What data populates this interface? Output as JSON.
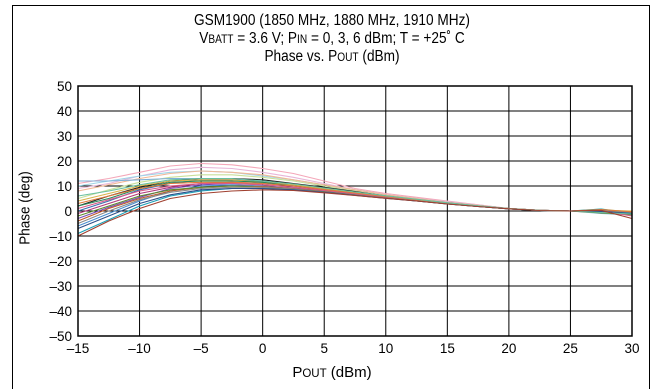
{
  "chart_data": {
    "type": "line",
    "title_lines": [
      {
        "parts": [
          {
            "t": "GSM1900 (1850 MHz, 1880 MHz, 1910 MHz)",
            "sc": false
          }
        ]
      },
      {
        "parts": [
          {
            "t": "V",
            "sc": false
          },
          {
            "t": "BATT",
            "sc": true
          },
          {
            "t": " = 3.6 V; P",
            "sc": false
          },
          {
            "t": "IN",
            "sc": true
          },
          {
            "t": " = 0, 3, 6 dBm; T = +25˚ C",
            "sc": false
          }
        ]
      },
      {
        "parts": [
          {
            "t": "Phase vs. P",
            "sc": false
          },
          {
            "t": "OUT",
            "sc": true
          },
          {
            "t": " (dBm)",
            "sc": false
          }
        ]
      }
    ],
    "title": "GSM1900 (1850 MHz, 1880 MHz, 1910 MHz) VBATT = 3.6 V; PIN = 0, 3, 6 dBm; T = +25˚ C Phase vs. POUT (dBm)",
    "xlabel_parts": [
      {
        "t": "P",
        "sc": false
      },
      {
        "t": "OUT",
        "sc": true
      },
      {
        "t": " (dBm)",
        "sc": false
      }
    ],
    "xlabel": "POUT (dBm)",
    "ylabel": "Phase (deg)",
    "xlim": [
      -15,
      30
    ],
    "ylim": [
      -50,
      50
    ],
    "xticks": [
      -15,
      -10,
      -5,
      0,
      5,
      10,
      15,
      20,
      25,
      30
    ],
    "xtick_labels": [
      "–15",
      "–10",
      "–5",
      "0",
      "5",
      "10",
      "15",
      "20",
      "25",
      "30"
    ],
    "yticks": [
      50,
      40,
      30,
      20,
      10,
      0,
      -10,
      -20,
      -30,
      -40,
      -50
    ],
    "ytick_labels": [
      "50",
      "40",
      "30",
      "20",
      "10",
      "0",
      "–10",
      "–20",
      "–30",
      "–40",
      "–50"
    ],
    "grid": true,
    "legend": "none",
    "x": [
      -15,
      -12.5,
      -10,
      -7.5,
      -5,
      -2.5,
      0,
      2.5,
      5,
      7.5,
      10,
      12.5,
      15,
      17.5,
      20,
      22.5,
      25,
      27.5,
      30
    ],
    "series": [
      {
        "color": "#f4a7b9",
        "values": [
          11,
          13,
          15.5,
          18,
          19,
          18.5,
          17,
          15,
          12,
          9,
          7,
          5.5,
          4,
          2.5,
          1,
          0.3,
          0,
          -0.5,
          -1
        ]
      },
      {
        "color": "#e8b5d8",
        "values": [
          9,
          11,
          14,
          16.5,
          17.5,
          17,
          15.5,
          13.5,
          11,
          8.5,
          6.5,
          5,
          3.8,
          2.5,
          1,
          0.3,
          0,
          0,
          -0.5
        ]
      },
      {
        "color": "#9fd4e8",
        "values": [
          10,
          12,
          14,
          15.5,
          16,
          15.5,
          14,
          12.5,
          10.5,
          8.5,
          6.5,
          5,
          3.5,
          2.2,
          1,
          0.3,
          0,
          0.3,
          -0.8
        ]
      },
      {
        "color": "#f0b896",
        "values": [
          8,
          10.5,
          13,
          15,
          16,
          15.5,
          14.5,
          12.5,
          10.5,
          8.5,
          6.5,
          5,
          3.5,
          2.3,
          1,
          0.3,
          0,
          -0.3,
          -1
        ]
      },
      {
        "color": "#c8e09a",
        "values": [
          5,
          8.5,
          11.5,
          13.5,
          14.5,
          14.5,
          13.5,
          12,
          10,
          8,
          6,
          4.5,
          3.2,
          2,
          1,
          0.3,
          0,
          0.8,
          -0.5
        ]
      },
      {
        "color": "#7fb0d8",
        "values": [
          12,
          12,
          12.5,
          13,
          13,
          12.5,
          11.5,
          10.5,
          9,
          7.5,
          6,
          4.5,
          3.2,
          2,
          1,
          0.3,
          0,
          -1,
          -1.5
        ]
      },
      {
        "color": "#222222",
        "values": [
          2,
          6,
          9.5,
          12,
          13,
          13,
          12.5,
          11,
          9.5,
          7.8,
          6,
          4.5,
          3.2,
          2,
          1,
          0.2,
          0,
          0,
          -0.5
        ]
      },
      {
        "color": "#3a6fb0",
        "values": [
          0,
          4,
          8.5,
          11,
          12.5,
          12.5,
          12,
          10.5,
          9,
          7.5,
          6,
          4.6,
          3.3,
          2,
          1,
          0.3,
          0,
          0.5,
          -1
        ]
      },
      {
        "color": "#d9b34a",
        "values": [
          4,
          7,
          10,
          12,
          12.5,
          12.5,
          11.5,
          10.5,
          9,
          7.5,
          6,
          4.5,
          3.2,
          2,
          1,
          0.3,
          0,
          0.3,
          0
        ]
      },
      {
        "color": "#2a8a5a",
        "values": [
          2,
          5,
          9,
          11.5,
          12,
          12,
          11.5,
          10,
          8.5,
          7,
          5.7,
          4.4,
          3.1,
          2,
          1,
          0.3,
          0,
          -0.3,
          -0.8
        ]
      },
      {
        "color": "#b03a7a",
        "values": [
          -1,
          3,
          7,
          9.5,
          11,
          11.5,
          11,
          10,
          8.5,
          7,
          5.7,
          4.4,
          3.1,
          2,
          1,
          0.3,
          0,
          0.5,
          -1
        ]
      },
      {
        "color": "#7a4fb5",
        "values": [
          -3,
          1.5,
          5.5,
          9,
          10.5,
          11,
          10.5,
          9.5,
          8,
          6.8,
          5.5,
          4.3,
          3,
          1.9,
          0.9,
          0.2,
          0,
          -0.5,
          -1
        ]
      },
      {
        "color": "#4a8fd0",
        "values": [
          -6,
          -1,
          4,
          8,
          10,
          10.5,
          10,
          9,
          8,
          6.7,
          5.4,
          4.2,
          3,
          1.9,
          0.9,
          0.2,
          0,
          0.2,
          -1.5
        ]
      },
      {
        "color": "#c05a2a",
        "values": [
          -4,
          1,
          5,
          8,
          9.5,
          10,
          9.8,
          9,
          7.8,
          6.5,
          5.3,
          4.1,
          2.9,
          1.8,
          0.9,
          0.2,
          0,
          -0.3,
          -0.5
        ]
      },
      {
        "color": "#1aa0b8",
        "values": [
          -9,
          -3.5,
          2,
          6,
          8,
          9,
          9,
          8.5,
          7.5,
          6.4,
          5.2,
          4,
          2.9,
          1.8,
          0.9,
          0.2,
          0,
          0.8,
          -1
        ]
      },
      {
        "color": "#5e8a2e",
        "values": [
          -2,
          2,
          6,
          8.5,
          9.5,
          10,
          9.5,
          8.8,
          7.7,
          6.5,
          5.3,
          4.1,
          2.9,
          1.8,
          0.9,
          0.2,
          0,
          -0.8,
          -1.5
        ]
      },
      {
        "color": "#d85a8a",
        "values": [
          1,
          4.5,
          8,
          10,
          11,
          11,
          10.5,
          9.5,
          8.2,
          6.9,
          5.6,
          4.3,
          3.1,
          2,
          1,
          0.3,
          0,
          0,
          -2
        ]
      },
      {
        "color": "#8a8a8a",
        "values": [
          -5,
          0,
          4.5,
          7.5,
          9,
          9.5,
          9.5,
          8.8,
          7.6,
          6.4,
          5.2,
          4,
          2.9,
          1.8,
          0.9,
          0.2,
          0,
          0.4,
          -0.5
        ]
      },
      {
        "color": "#2c4f8a",
        "values": [
          -7,
          -2,
          3,
          6.5,
          8.5,
          9,
          9,
          8.5,
          7.5,
          6.3,
          5.1,
          4,
          2.8,
          1.8,
          0.9,
          0.2,
          0,
          -0.2,
          -1
        ]
      },
      {
        "color": "#e07a3a",
        "values": [
          3,
          6,
          9,
          11,
          11.5,
          11.5,
          11,
          10,
          8.6,
          7.2,
          5.8,
          4.5,
          3.2,
          2,
          1,
          0.3,
          0,
          0.6,
          -0.3
        ]
      },
      {
        "color": "#6ac0a0",
        "values": [
          6,
          8,
          10.5,
          12.5,
          13,
          13,
          12,
          10.8,
          9.2,
          7.6,
          6.1,
          4.7,
          3.3,
          2.1,
          1,
          0.3,
          0,
          -0.6,
          -1.2
        ]
      },
      {
        "color": "#a04030",
        "values": [
          -10,
          -4,
          1,
          5,
          7,
          8,
          8.5,
          8.2,
          7.3,
          6.2,
          5.1,
          4,
          2.8,
          1.8,
          0.9,
          0.2,
          0,
          0.3,
          -3
        ]
      }
    ]
  }
}
